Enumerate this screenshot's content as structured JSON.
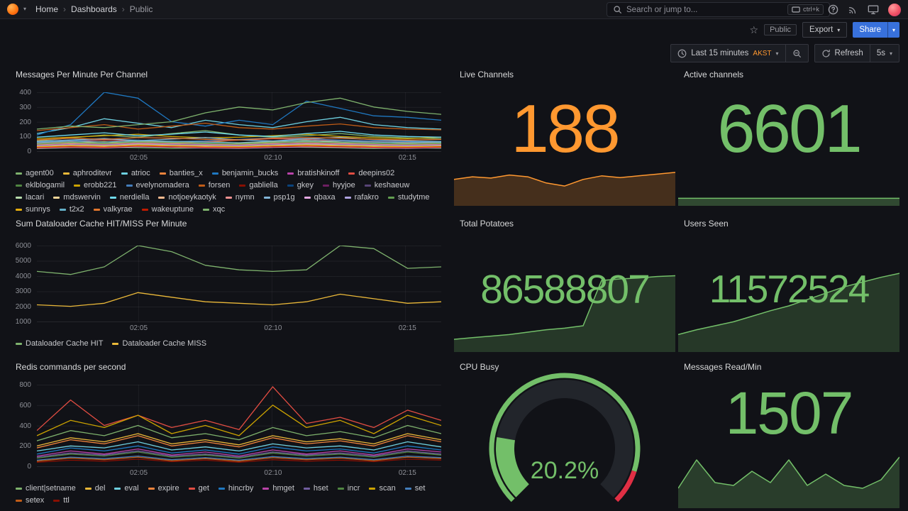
{
  "nav": {
    "breadcrumb": [
      "Home",
      "Dashboards",
      "Public"
    ],
    "search_placeholder": "Search or jump to...",
    "search_shortcut": "ctrl+k"
  },
  "toolbar": {
    "tag": "Public",
    "export_label": "Export",
    "share_label": "Share"
  },
  "timebar": {
    "range_label": "Last 15 minutes",
    "timezone": "AKST",
    "refresh_label": "Refresh",
    "interval": "5s"
  },
  "icons": {
    "star": "☆",
    "caret": "▾",
    "breadcrumb_sep": "›"
  },
  "panels": {
    "messages": {
      "title": "Messages Per Minute Per Channel",
      "yticks": [
        "400",
        "300",
        "200",
        "100",
        "0"
      ],
      "xticks": [
        "02:05",
        "02:10",
        "02:15"
      ]
    },
    "live_channels": {
      "title": "Live Channels",
      "value": "188"
    },
    "active_channels": {
      "title": "Active channels",
      "value": "6601"
    },
    "dataloader": {
      "title": "Sum Dataloader Cache HIT/MISS Per Minute",
      "yticks": [
        "6000",
        "5000",
        "4000",
        "3000",
        "2000",
        "1000"
      ],
      "xticks": [
        "02:05",
        "02:10",
        "02:15"
      ]
    },
    "total_potatoes": {
      "title": "Total Potatoes",
      "value": "86588807"
    },
    "users_seen": {
      "title": "Users Seen",
      "value": "11572524"
    },
    "redis": {
      "title": "Redis commands per second",
      "yticks": [
        "800",
        "600",
        "400",
        "200",
        "0"
      ],
      "xticks": [
        "02:05",
        "02:10",
        "02:15"
      ]
    },
    "cpu_busy": {
      "title": "CPU Busy"
    },
    "messages_read": {
      "title": "Messages Read/Min",
      "value": "1507"
    }
  },
  "gauge": {
    "min": 0,
    "max": 100,
    "value": 20.2,
    "display": "20.2%",
    "color": "#73bf69",
    "red_color": "#e02f44",
    "red_start": 0.9,
    "track": "#22252b"
  },
  "charts": {
    "messages": {
      "ymin": 0,
      "ymax": 400,
      "type": "line",
      "series": [
        {
          "name": "agent00",
          "color": "#7EB26D",
          "values": [
            70,
            90,
            110,
            95,
            120,
            140,
            110,
            95,
            105,
            120,
            100,
            90,
            85
          ]
        },
        {
          "name": "aphroditevr",
          "color": "#EAB839",
          "values": [
            45,
            55,
            65,
            50,
            60,
            70,
            55,
            65,
            75,
            60,
            50,
            55,
            45
          ]
        },
        {
          "name": "atrioc",
          "color": "#6ED0E0",
          "values": [
            120,
            160,
            220,
            190,
            160,
            210,
            180,
            160,
            200,
            230,
            180,
            160,
            150
          ]
        },
        {
          "name": "banties_x",
          "color": "#EF843C",
          "values": [
            35,
            45,
            40,
            50,
            55,
            45,
            40,
            35,
            50,
            55,
            45,
            40,
            35
          ]
        },
        {
          "name": "benjamin_bucks",
          "color": "#1F78C1",
          "values": [
            110,
            180,
            400,
            360,
            200,
            170,
            210,
            180,
            340,
            290,
            240,
            230,
            210
          ]
        },
        {
          "name": "bratishkinoff",
          "color": "#BA43A9",
          "values": [
            25,
            35,
            30,
            40,
            35,
            30,
            25,
            35,
            40,
            35,
            30,
            25,
            30
          ]
        },
        {
          "name": "deepins02",
          "color": "#E24D42",
          "values": [
            55,
            65,
            75,
            70,
            60,
            65,
            75,
            85,
            80,
            70,
            65,
            60,
            55
          ]
        },
        {
          "name": "eklblogamil",
          "color": "#508642",
          "values": [
            18,
            24,
            28,
            22,
            18,
            24,
            28,
            32,
            26,
            22,
            18,
            24,
            20
          ]
        },
        {
          "name": "erobb221",
          "color": "#CCA300",
          "values": [
            85,
            95,
            105,
            115,
            100,
            90,
            95,
            105,
            115,
            100,
            90,
            85,
            95
          ]
        },
        {
          "name": "evelynomadera",
          "color": "#447EBC",
          "values": [
            60,
            70,
            80,
            75,
            65,
            70,
            80,
            90,
            85,
            75,
            70,
            65,
            60
          ]
        },
        {
          "name": "forsen",
          "color": "#C15C17",
          "values": [
            140,
            160,
            180,
            150,
            170,
            190,
            160,
            150,
            170,
            185,
            160,
            150,
            145
          ]
        },
        {
          "name": "gabliella",
          "color": "#890F02",
          "values": [
            30,
            40,
            35,
            45,
            40,
            35,
            30,
            40,
            45,
            40,
            35,
            30,
            35
          ]
        },
        {
          "name": "gkey",
          "color": "#0A437C",
          "values": [
            22,
            28,
            26,
            32,
            28,
            24,
            22,
            28,
            32,
            28,
            24,
            22,
            26
          ]
        },
        {
          "name": "hyyjoe",
          "color": "#6D1F62",
          "values": [
            40,
            50,
            45,
            55,
            50,
            45,
            40,
            50,
            55,
            50,
            45,
            40,
            45
          ]
        },
        {
          "name": "keshaeuw",
          "color": "#584477",
          "values": [
            28,
            34,
            30,
            38,
            34,
            30,
            28,
            34,
            38,
            34,
            30,
            28,
            32
          ]
        },
        {
          "name": "lacari",
          "color": "#B7DBAB",
          "values": [
            50,
            60,
            55,
            65,
            60,
            55,
            50,
            60,
            65,
            60,
            55,
            50,
            55
          ]
        },
        {
          "name": "mdswervin",
          "color": "#F4D598",
          "values": [
            34,
            40,
            36,
            44,
            40,
            36,
            34,
            40,
            44,
            40,
            36,
            34,
            38
          ]
        },
        {
          "name": "nerdiella",
          "color": "#70DBED",
          "values": [
            95,
            110,
            125,
            105,
            115,
            130,
            110,
            100,
            120,
            135,
            110,
            100,
            95
          ]
        },
        {
          "name": "notjoeykaotyk",
          "color": "#F9BA8F",
          "values": [
            26,
            32,
            28,
            36,
            32,
            28,
            26,
            32,
            36,
            32,
            28,
            26,
            30
          ]
        },
        {
          "name": "nymn",
          "color": "#F29191",
          "values": [
            44,
            52,
            48,
            56,
            52,
            48,
            44,
            52,
            56,
            52,
            48,
            44,
            48
          ]
        },
        {
          "name": "psp1g",
          "color": "#82B5D8",
          "values": [
            66,
            76,
            86,
            72,
            82,
            92,
            76,
            70,
            84,
            94,
            78,
            70,
            66
          ]
        },
        {
          "name": "qbaxa",
          "color": "#E5A8E2",
          "values": [
            20,
            26,
            22,
            30,
            26,
            22,
            20,
            26,
            30,
            26,
            22,
            20,
            24
          ]
        },
        {
          "name": "rafakro",
          "color": "#AEA2E0",
          "values": [
            36,
            44,
            40,
            48,
            44,
            40,
            36,
            44,
            48,
            44,
            40,
            36,
            40
          ]
        },
        {
          "name": "studytme",
          "color": "#629E51",
          "values": [
            48,
            58,
            52,
            62,
            58,
            52,
            48,
            58,
            62,
            58,
            52,
            48,
            52
          ]
        },
        {
          "name": "sunnys",
          "color": "#E5AC0E",
          "values": [
            30,
            38,
            34,
            42,
            38,
            34,
            30,
            38,
            42,
            38,
            34,
            30,
            34
          ]
        },
        {
          "name": "t2x2",
          "color": "#64B0C8",
          "values": [
            58,
            68,
            62,
            72,
            68,
            62,
            58,
            68,
            72,
            68,
            62,
            58,
            62
          ]
        },
        {
          "name": "valkyrae",
          "color": "#E0752D",
          "values": [
            76,
            88,
            80,
            92,
            88,
            80,
            76,
            88,
            92,
            88,
            80,
            76,
            80
          ]
        },
        {
          "name": "wakeuptune",
          "color": "#BF1B00",
          "values": [
            24,
            30,
            26,
            34,
            30,
            26,
            24,
            30,
            34,
            30,
            26,
            24,
            28
          ]
        },
        {
          "name": "xqc",
          "color": "#7EB26D",
          "values": [
            150,
            170,
            160,
            180,
            200,
            260,
            300,
            280,
            330,
            360,
            300,
            270,
            250
          ]
        }
      ]
    },
    "dataloader": {
      "ymin": 1000,
      "ymax": 6000,
      "type": "line",
      "series": [
        {
          "name": "Dataloader Cache HIT",
          "color": "#7EB26D",
          "values": [
            4300,
            4100,
            4600,
            6000,
            5600,
            4700,
            4400,
            4300,
            4400,
            6000,
            5800,
            4500,
            4600
          ]
        },
        {
          "name": "Dataloader Cache MISS",
          "color": "#EAB839",
          "values": [
            2100,
            2000,
            2200,
            2900,
            2600,
            2300,
            2200,
            2100,
            2300,
            2800,
            2500,
            2200,
            2300
          ]
        }
      ]
    },
    "redis": {
      "ymin": 0,
      "ymax": 800,
      "type": "line",
      "series": [
        {
          "name": "client|setname",
          "color": "#7EB26D",
          "values": [
            250,
            350,
            300,
            400,
            280,
            320,
            260,
            380,
            300,
            340,
            280,
            400,
            320
          ]
        },
        {
          "name": "del",
          "color": "#EAB839",
          "values": [
            200,
            280,
            240,
            320,
            220,
            260,
            210,
            300,
            240,
            270,
            220,
            320,
            260
          ]
        },
        {
          "name": "eval",
          "color": "#6ED0E0",
          "values": [
            150,
            200,
            180,
            240,
            160,
            190,
            150,
            220,
            180,
            200,
            160,
            240,
            190
          ]
        },
        {
          "name": "expire",
          "color": "#EF843C",
          "values": [
            180,
            260,
            220,
            300,
            200,
            240,
            190,
            280,
            220,
            250,
            200,
            300,
            240
          ]
        },
        {
          "name": "get",
          "color": "#E24D42",
          "values": [
            350,
            650,
            400,
            500,
            380,
            450,
            360,
            780,
            420,
            480,
            380,
            550,
            450
          ]
        },
        {
          "name": "hincrby",
          "color": "#1F78C1",
          "values": [
            120,
            180,
            150,
            200,
            130,
            160,
            120,
            190,
            150,
            170,
            130,
            200,
            160
          ]
        },
        {
          "name": "hmget",
          "color": "#BA43A9",
          "values": [
            100,
            150,
            120,
            170,
            110,
            140,
            100,
            160,
            120,
            150,
            110,
            170,
            140
          ]
        },
        {
          "name": "hset",
          "color": "#705DA0",
          "values": [
            90,
            130,
            110,
            150,
            100,
            120,
            90,
            140,
            110,
            130,
            100,
            150,
            120
          ]
        },
        {
          "name": "incr",
          "color": "#508642",
          "values": [
            80,
            120,
            100,
            140,
            90,
            110,
            80,
            130,
            100,
            120,
            90,
            140,
            110
          ]
        },
        {
          "name": "scan",
          "color": "#CCA300",
          "values": [
            300,
            450,
            380,
            500,
            320,
            400,
            300,
            600,
            380,
            450,
            320,
            500,
            400
          ]
        },
        {
          "name": "set",
          "color": "#447EBC",
          "values": [
            60,
            90,
            75,
            100,
            65,
            85,
            60,
            95,
            75,
            90,
            65,
            100,
            85
          ]
        },
        {
          "name": "setex",
          "color": "#C15C17",
          "values": [
            50,
            80,
            65,
            90,
            55,
            75,
            50,
            85,
            65,
            80,
            55,
            90,
            75
          ]
        },
        {
          "name": "ttl",
          "color": "#890F02",
          "values": [
            40,
            60,
            50,
            70,
            45,
            60,
            40,
            65,
            50,
            60,
            45,
            70,
            60
          ]
        }
      ]
    },
    "live_spark": {
      "ymin": 0,
      "ymax": 100,
      "type": "area",
      "series": [
        {
          "name": "live",
          "color": "#ff9830",
          "fill": "rgba(255,152,48,0.22)",
          "width": 1.5,
          "values": [
            60,
            66,
            63,
            70,
            66,
            52,
            45,
            60,
            68,
            64,
            68,
            72,
            76
          ]
        }
      ]
    },
    "active_spark": {
      "ymin": 0,
      "ymax": 100,
      "type": "area",
      "series": [
        {
          "name": "active",
          "color": "#73bf69",
          "fill": "rgba(115,191,105,0.32)",
          "width": 1.5,
          "values": [
            33,
            33
          ]
        }
      ]
    },
    "potatoes_spark": {
      "ymin": 0,
      "ymax": 100,
      "type": "area",
      "series": [
        {
          "name": "potatoes",
          "color": "#73bf69",
          "fill": "rgba(115,191,105,0.22)",
          "width": 1.5,
          "values": [
            16,
            18,
            20,
            22,
            25,
            28,
            30,
            33,
            90,
            92,
            93,
            95,
            96
          ]
        }
      ]
    },
    "users_spark": {
      "ymin": 0,
      "ymax": 100,
      "type": "area",
      "series": [
        {
          "name": "users",
          "color": "#73bf69",
          "fill": "rgba(115,191,105,0.22)",
          "width": 1.5,
          "values": [
            22,
            28,
            33,
            38,
            45,
            52,
            58,
            66,
            74,
            82,
            88,
            94,
            99
          ]
        }
      ]
    },
    "msgread_spark": {
      "ymin": 0,
      "ymax": 100,
      "type": "area",
      "series": [
        {
          "name": "messages read",
          "color": "#73bf69",
          "fill": "rgba(115,191,105,0.25)",
          "width": 1.5,
          "values": [
            35,
            85,
            45,
            40,
            65,
            45,
            85,
            40,
            60,
            40,
            35,
            50,
            90
          ]
        }
      ]
    }
  }
}
